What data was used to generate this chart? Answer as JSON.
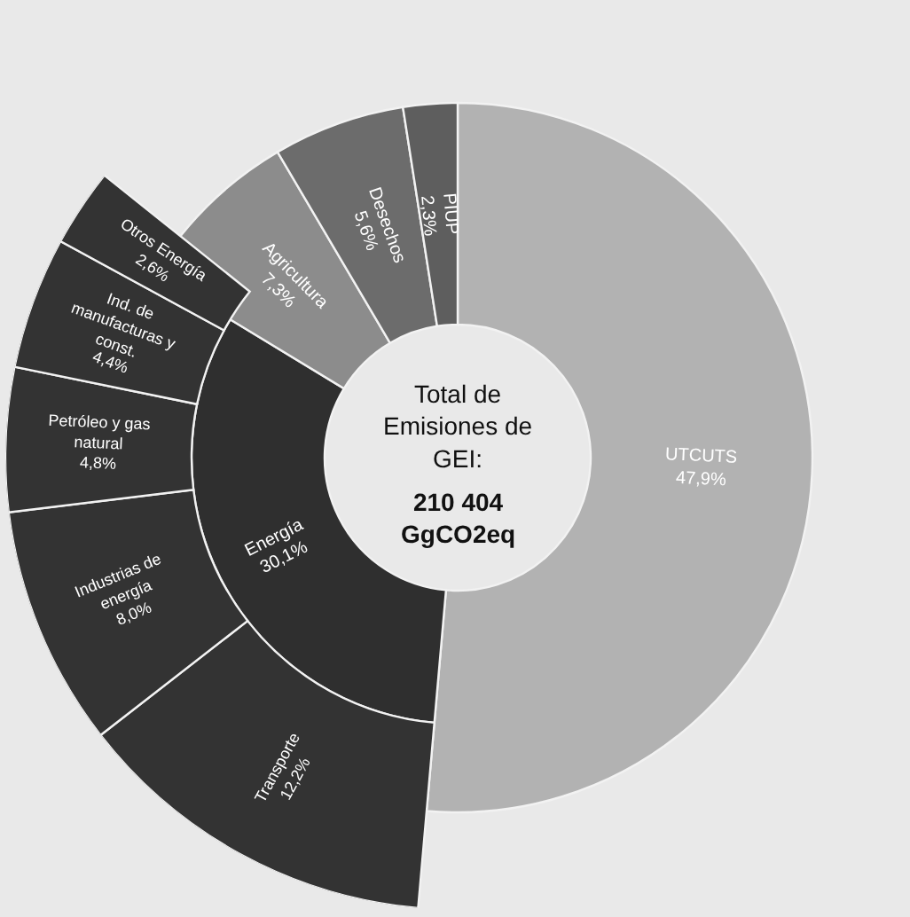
{
  "chart_data": {
    "type": "other",
    "categories": [
      "UTCUTS",
      "Energía",
      "Agricultura",
      "Desechos",
      "PIUP",
      "Transporte",
      "Industrias de energía",
      "Petróleo y gas natural",
      "Ind. de manufacturas y const.",
      "Otros Energía"
    ],
    "values": [
      47.9,
      30.1,
      7.3,
      5.6,
      2.3,
      12.2,
      8.0,
      4.8,
      4.4,
      2.6
    ],
    "value_labels": [
      "47,9%",
      "30,1%",
      "7,3%",
      "5,6%",
      "2,3%",
      "12,2%",
      "8,0%",
      "4,8%",
      "4,4%",
      "2,6%"
    ],
    "colors": [
      "#b2b2b2",
      "#2f2f2f",
      "#8c8c8c",
      "#6c6c6c",
      "#5e5e5e",
      "#333333",
      "#333333",
      "#333333",
      "#333333",
      "#333333"
    ],
    "annotations": [
      "Total de Emisiones de GEI:",
      "210 404 GgCO2eq"
    ]
  }
}
